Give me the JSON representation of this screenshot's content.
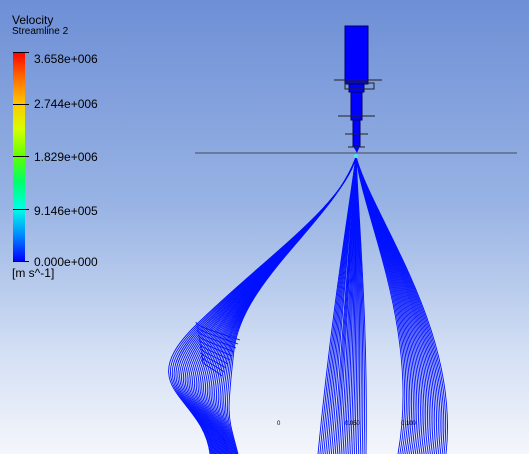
{
  "legend": {
    "title": "Velocity",
    "subtitle": "Streamline 2",
    "max_value": "3.658e+006",
    "v2": "2.744e+006",
    "v3": "1.829e+006",
    "v4": "9.146e+005",
    "min_value": "0.000e+000",
    "unit": "[m s^-1]"
  },
  "axis_labels": {
    "left": "0",
    "middle": "0.050",
    "right": "0.100"
  },
  "colors": {
    "streamline": "#0010ff",
    "background_top": "#6e8fd6",
    "background_bottom": "#f4f6fb",
    "geometry": "#0000ff"
  }
}
